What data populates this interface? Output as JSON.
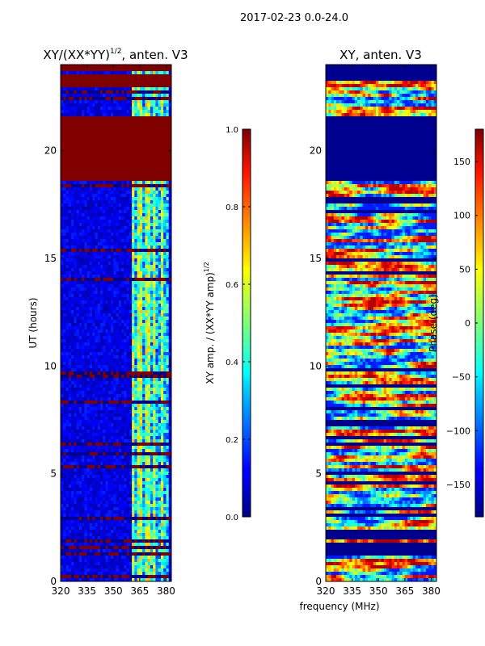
{
  "suptitle": "2017-02-23 0.0-24.0",
  "chart_data": [
    {
      "type": "heatmap",
      "title_main": "XY/(XX*YY)",
      "title_exp": "1/2",
      "title_rest": ", anten. V3",
      "ylabel": "UT (hours)",
      "xlabel": "",
      "xlim": [
        320,
        383
      ],
      "ylim": [
        0,
        24
      ],
      "xticks": [
        320,
        335,
        350,
        365,
        380
      ],
      "yticks": [
        0,
        5,
        10,
        15,
        20
      ],
      "flag_color": "#800000",
      "flagged_ranges_hours": [
        [
          18.6,
          21.6
        ],
        [
          22.9,
          23.5
        ],
        [
          23.75,
          24.0
        ]
      ],
      "colorbar": {
        "label_main": "XY amp. / (XX*YY amp)",
        "label_exp": "1/2",
        "range": [
          0.0,
          1.0
        ],
        "ticks": [
          "0.0",
          "0.2",
          "0.4",
          "0.6",
          "0.8",
          "1.0"
        ],
        "colormap": "jet"
      }
    },
    {
      "type": "heatmap",
      "title": "XY, anten. V3",
      "xlabel": "frequency (MHz)",
      "ylabel": "",
      "xlim": [
        320,
        383
      ],
      "ylim": [
        0,
        24
      ],
      "xticks": [
        320,
        335,
        350,
        365,
        380
      ],
      "yticks": [
        0,
        5,
        10,
        15,
        20
      ],
      "flag_color": "#00008f",
      "flagged_ranges_hours": [
        [
          18.6,
          21.6
        ]
      ],
      "colorbar": {
        "label": "Phase (deg)",
        "range": [
          -180,
          180
        ],
        "ticks": [
          "−150",
          "−100",
          "−50",
          "0",
          "50",
          "100",
          "150"
        ],
        "colormap": "jet"
      }
    }
  ]
}
